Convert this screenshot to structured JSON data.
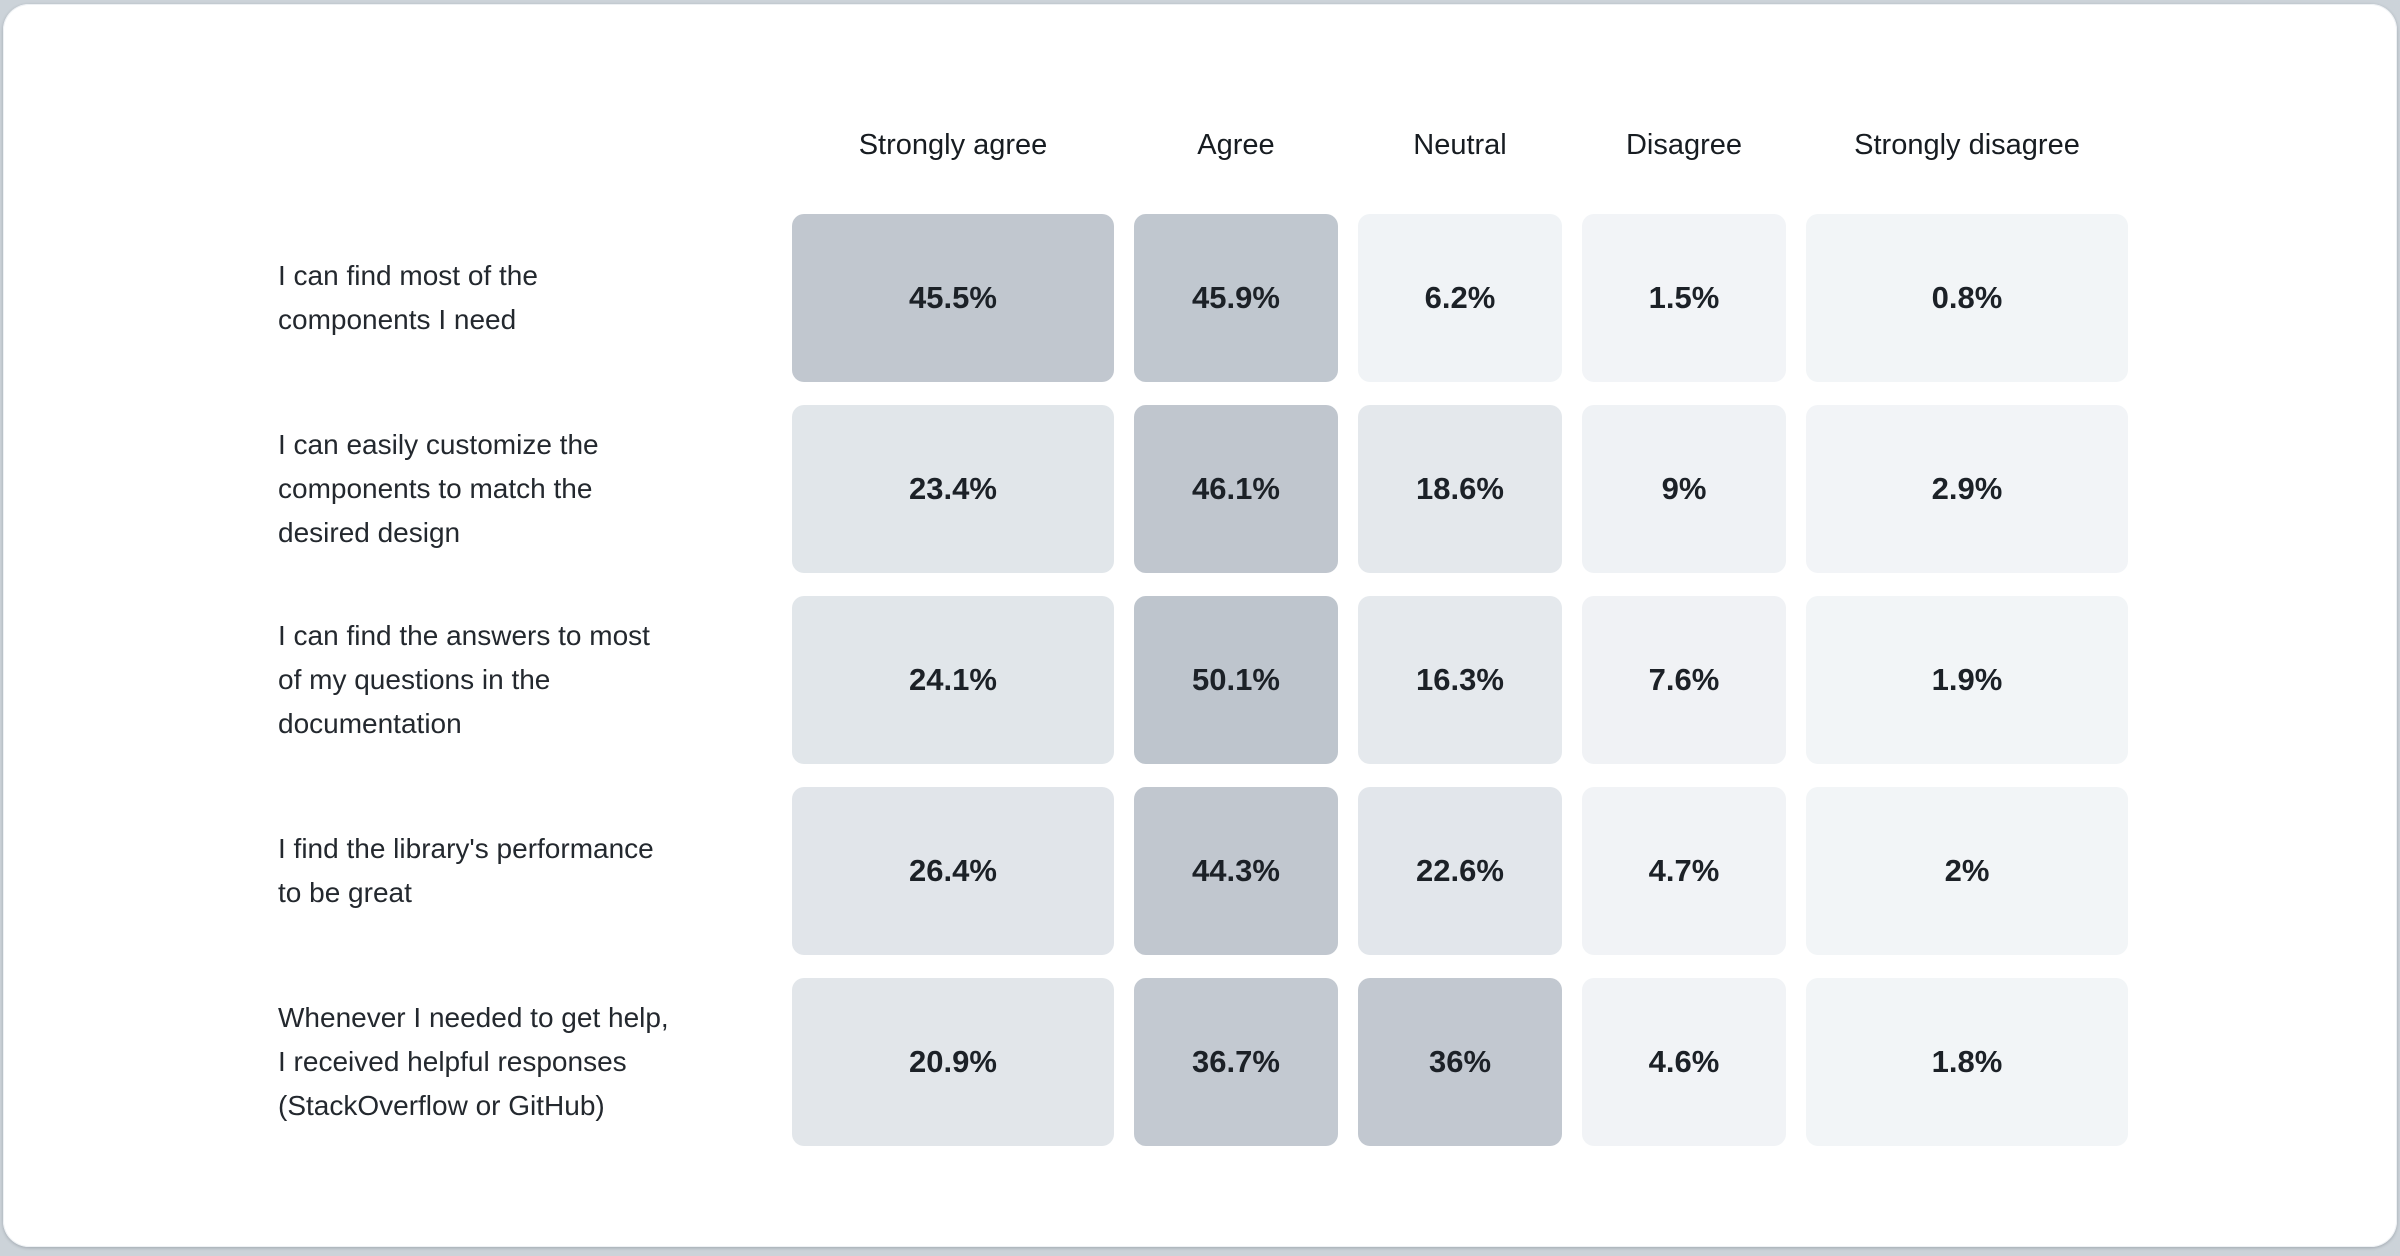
{
  "page": {
    "background_color": "#ccd3d9",
    "card_background": "#ffffff"
  },
  "chart_data": {
    "type": "heatmap",
    "title": "",
    "legend_position": "none",
    "value_range": [
      0,
      50.1
    ],
    "palette": {
      "low": "#f2f5f8",
      "mid": "#e2e6ea",
      "high": "#bec5cd"
    },
    "columns": [
      "Strongly agree",
      "Agree",
      "Neutral",
      "Disagree",
      "Strongly disagree"
    ],
    "rows": [
      {
        "label": "I can find most of the components I need",
        "cells": [
          {
            "text": "45.5%",
            "value": 45.5,
            "color": "#c1c7cf"
          },
          {
            "text": "45.9%",
            "value": 45.9,
            "color": "#c0c7cf"
          },
          {
            "text": "6.2%",
            "value": 6.2,
            "color": "#f0f3f6"
          },
          {
            "text": "1.5%",
            "value": 1.5,
            "color": "#f2f4f7"
          },
          {
            "text": "0.8%",
            "value": 0.8,
            "color": "#f2f5f7"
          }
        ]
      },
      {
        "label": "I can easily customize the components to match the desired design",
        "cells": [
          {
            "text": "23.4%",
            "value": 23.4,
            "color": "#e1e6ea"
          },
          {
            "text": "46.1%",
            "value": 46.1,
            "color": "#c0c6ce"
          },
          {
            "text": "18.6%",
            "value": 18.6,
            "color": "#e4e8ec"
          },
          {
            "text": "9%",
            "value": 9,
            "color": "#eff2f5"
          },
          {
            "text": "2.9%",
            "value": 2.9,
            "color": "#f2f4f7"
          }
        ]
      },
      {
        "label": "I can find the answers to most of my questions in the documentation",
        "cells": [
          {
            "text": "24.1%",
            "value": 24.1,
            "color": "#e1e6ea"
          },
          {
            "text": "50.1%",
            "value": 50.1,
            "color": "#bec5cd"
          },
          {
            "text": "16.3%",
            "value": 16.3,
            "color": "#e5e9ed"
          },
          {
            "text": "7.6%",
            "value": 7.6,
            "color": "#f0f2f5"
          },
          {
            "text": "1.9%",
            "value": 1.9,
            "color": "#f2f5f7"
          }
        ]
      },
      {
        "label": "I find the library's performance to be great",
        "cells": [
          {
            "text": "26.4%",
            "value": 26.4,
            "color": "#e1e5ea"
          },
          {
            "text": "44.3%",
            "value": 44.3,
            "color": "#c1c7cf"
          },
          {
            "text": "22.6%",
            "value": 22.6,
            "color": "#e2e6eb"
          },
          {
            "text": "4.7%",
            "value": 4.7,
            "color": "#f1f3f6"
          },
          {
            "text": "2%",
            "value": 2,
            "color": "#f2f5f7"
          }
        ]
      },
      {
        "label": "Whenever I needed to get help, I received helpful responses (StackOverflow or GitHub)",
        "cells": [
          {
            "text": "20.9%",
            "value": 20.9,
            "color": "#e2e6ea"
          },
          {
            "text": "36.7%",
            "value": 36.7,
            "color": "#c3c9d1"
          },
          {
            "text": "36%",
            "value": 36,
            "color": "#c2c8d0"
          },
          {
            "text": "4.6%",
            "value": 4.6,
            "color": "#f1f3f6"
          },
          {
            "text": "1.8%",
            "value": 1.8,
            "color": "#f2f5f7"
          }
        ]
      }
    ]
  }
}
